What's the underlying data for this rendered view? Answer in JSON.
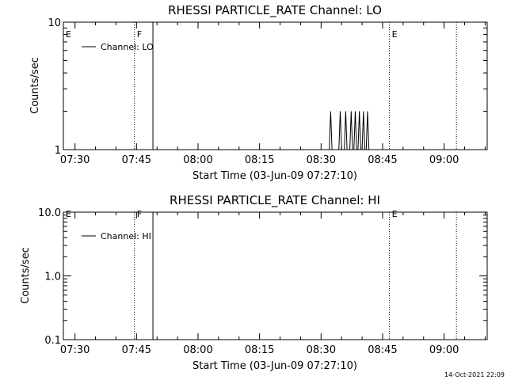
{
  "chart_data": [
    {
      "type": "line",
      "title": "RHESSI PARTICLE_RATE Channel: LO",
      "xlabel": "Start Time (03-Jun-09 07:27:10)",
      "ylabel": "Counts/sec",
      "yscale": "log",
      "ylim": [
        1,
        10
      ],
      "xlim_minutes": [
        "07:27:10",
        "09:10:30"
      ],
      "x_tick_labels": [
        "07:30",
        "07:45",
        "08:00",
        "08:15",
        "08:30",
        "08:45",
        "09:00"
      ],
      "x_tick_minutes": [
        450,
        465,
        480,
        495,
        510,
        525,
        540
      ],
      "y_tick_labels": [
        "1",
        "10"
      ],
      "y_tick_values": [
        1,
        10
      ],
      "legend": [
        "Channel: LO"
      ],
      "legend_position": "top-left",
      "markers": [
        {
          "label": "E",
          "time": "07:27:10",
          "style": "dotted"
        },
        {
          "label": "F",
          "time": "07:44:30",
          "style": "dotted"
        },
        {
          "label": "",
          "time": "07:49:00",
          "style": "solid"
        },
        {
          "label": "E",
          "time": "08:46:40",
          "style": "dotted"
        },
        {
          "label": "",
          "time": "09:03:00",
          "style": "dotted"
        }
      ],
      "series": [
        {
          "name": "Channel: LO",
          "points": [
            [
              "08:32:00",
              1
            ],
            [
              "08:32:20",
              2
            ],
            [
              "08:32:40",
              1
            ],
            [
              "08:34:20",
              1
            ],
            [
              "08:34:40",
              2
            ],
            [
              "08:35:00",
              1
            ],
            [
              "08:35:40",
              1
            ],
            [
              "08:36:00",
              2
            ],
            [
              "08:36:20",
              1
            ],
            [
              "08:37:00",
              1
            ],
            [
              "08:37:20",
              2
            ],
            [
              "08:37:40",
              1
            ],
            [
              "08:38:00",
              1
            ],
            [
              "08:38:20",
              2
            ],
            [
              "08:38:40",
              1
            ],
            [
              "08:39:00",
              1
            ],
            [
              "08:39:20",
              2
            ],
            [
              "08:39:40",
              1
            ],
            [
              "08:40:00",
              1
            ],
            [
              "08:40:20",
              2
            ],
            [
              "08:40:40",
              1
            ],
            [
              "08:41:00",
              1
            ],
            [
              "08:41:20",
              2
            ],
            [
              "08:41:40",
              1
            ]
          ]
        }
      ]
    },
    {
      "type": "line",
      "title": "RHESSI PARTICLE_RATE Channel: HI",
      "xlabel": "Start Time (03-Jun-09 07:27:10)",
      "ylabel": "Counts/sec",
      "yscale": "log",
      "ylim": [
        0.1,
        10
      ],
      "xlim_minutes": [
        "07:27:10",
        "09:10:30"
      ],
      "x_tick_labels": [
        "07:30",
        "07:45",
        "08:00",
        "08:15",
        "08:30",
        "08:45",
        "09:00"
      ],
      "x_tick_minutes": [
        450,
        465,
        480,
        495,
        510,
        525,
        540
      ],
      "y_tick_labels": [
        "0.1",
        "1.0",
        "10.0"
      ],
      "y_tick_values": [
        0.1,
        1,
        10
      ],
      "legend": [
        "Channel: HI"
      ],
      "legend_position": "top-left",
      "markers": [
        {
          "label": "E",
          "time": "07:27:10",
          "style": "dotted"
        },
        {
          "label": "F",
          "time": "07:44:30",
          "style": "dotted"
        },
        {
          "label": "",
          "time": "07:49:00",
          "style": "solid"
        },
        {
          "label": "E",
          "time": "08:46:40",
          "style": "dotted"
        },
        {
          "label": "",
          "time": "09:03:00",
          "style": "dotted"
        }
      ],
      "series": [
        {
          "name": "Channel: HI",
          "points": []
        }
      ]
    }
  ],
  "footer": "14-Oct-2021 22:09"
}
